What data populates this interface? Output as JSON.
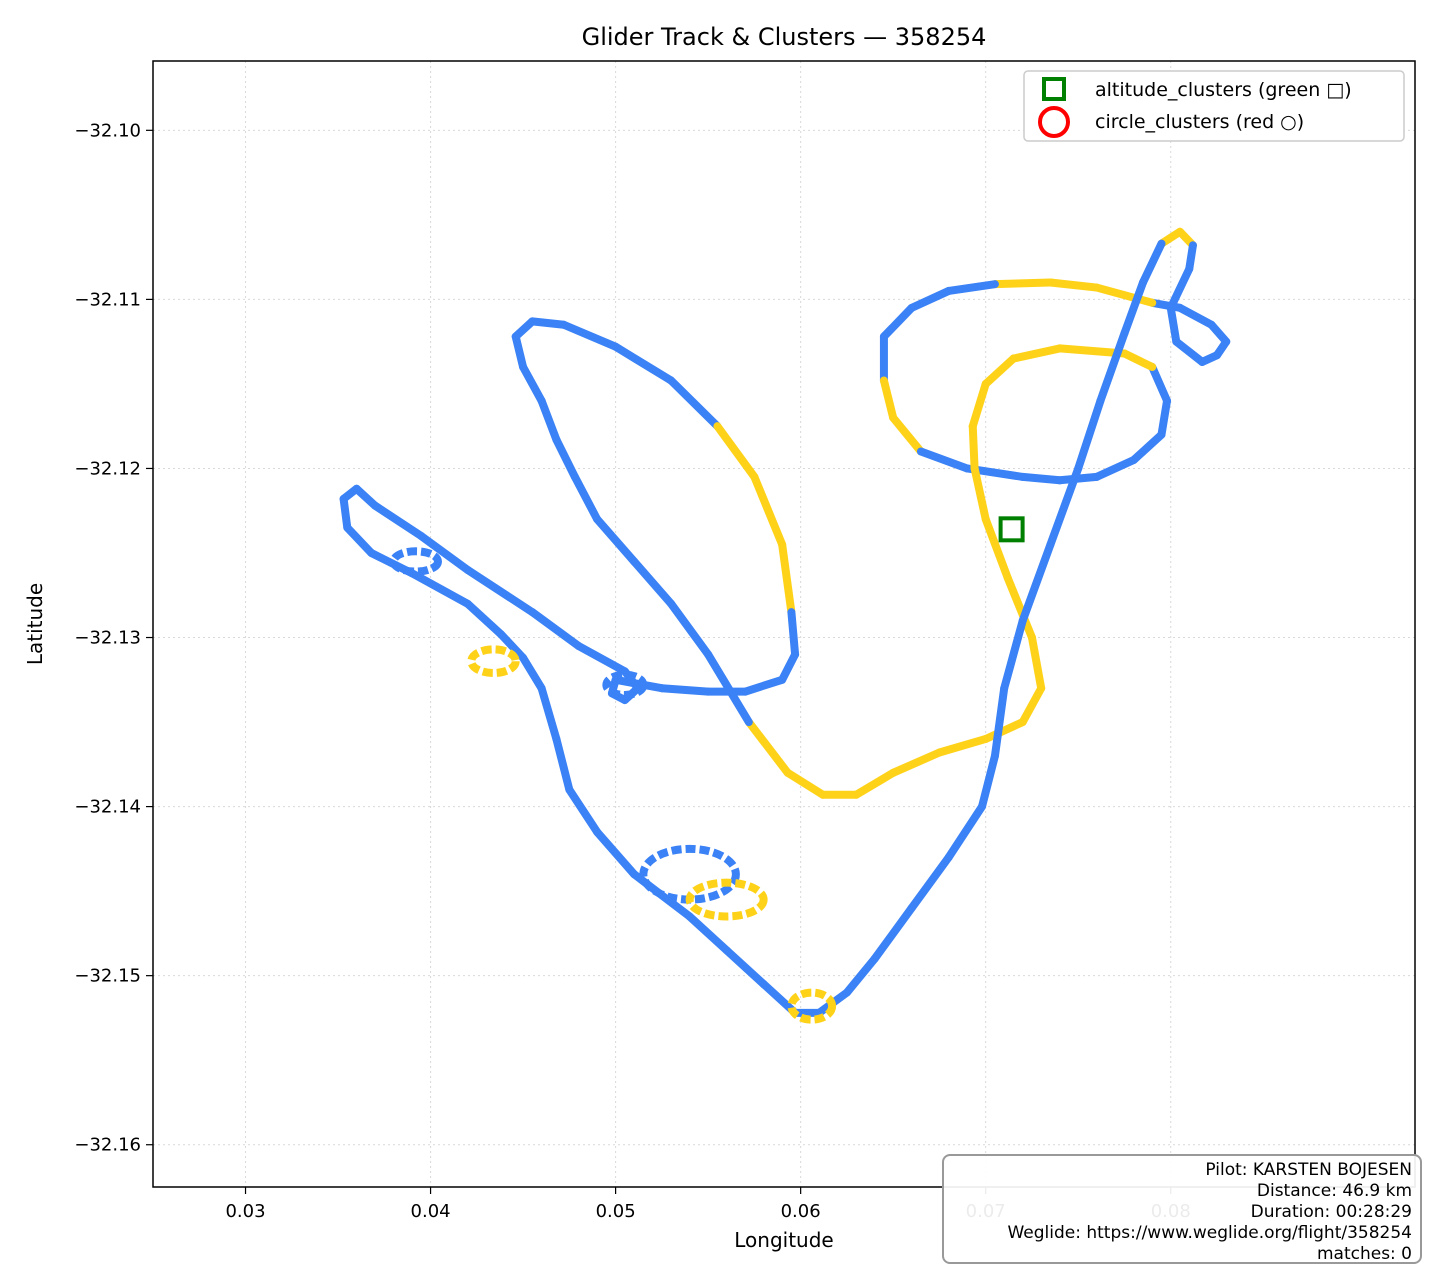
{
  "chart_data": {
    "type": "line",
    "title": "Glider Track & Clusters — 358254",
    "xlabel": "Longitude",
    "ylabel": "Latitude",
    "xlim": [
      0.025,
      0.0932
    ],
    "ylim": [
      -32.1625,
      -32.0959
    ],
    "xticks": [
      "0.03",
      "0.04",
      "0.05",
      "0.06",
      "0.07",
      "0.08"
    ],
    "xtick_values": [
      0.03,
      0.04,
      0.05,
      0.06,
      0.07,
      0.08
    ],
    "yticks": [
      "−32.10",
      "−32.11",
      "−32.12",
      "−32.13",
      "−32.14",
      "−32.15",
      "−32.16"
    ],
    "ytick_values": [
      -32.1,
      -32.11,
      -32.12,
      -32.13,
      -32.14,
      -32.15,
      -32.16
    ],
    "grid": true,
    "legend_placement": "upper right",
    "colors": {
      "climb": "#ffd21a",
      "glide": "#3b82f6",
      "altitude_cluster": "#008000",
      "circle_cluster": "#ff0000"
    },
    "series": [
      {
        "name": "altitude_clusters (green □)",
        "marker": "square",
        "points": [
          [
            0.0714,
            -32.1236
          ]
        ]
      },
      {
        "name": "circle_clusters (red ○)",
        "marker": "circle",
        "points": []
      }
    ],
    "track": [
      [
        0.0795,
        -32.1067
      ],
      [
        0.0805,
        -32.106
      ],
      [
        0.0812,
        -32.1068
      ],
      [
        0.081,
        -32.1082
      ],
      [
        0.08,
        -32.1105
      ],
      [
        0.0803,
        -32.1125
      ],
      [
        0.0817,
        -32.1137
      ],
      [
        0.0825,
        -32.1133
      ],
      [
        0.083,
        -32.1125
      ],
      [
        0.0822,
        -32.1115
      ],
      [
        0.0805,
        -32.1105
      ],
      [
        0.079,
        -32.1102
      ],
      [
        0.076,
        -32.1093
      ],
      [
        0.0735,
        -32.109
      ],
      [
        0.0705,
        -32.1091
      ],
      [
        0.068,
        -32.1095
      ],
      [
        0.066,
        -32.1105
      ],
      [
        0.0645,
        -32.1122
      ],
      [
        0.0645,
        -32.1148
      ],
      [
        0.065,
        -32.117
      ],
      [
        0.0665,
        -32.119
      ],
      [
        0.069,
        -32.12
      ],
      [
        0.072,
        -32.1205
      ],
      [
        0.074,
        -32.1207
      ],
      [
        0.076,
        -32.1205
      ],
      [
        0.078,
        -32.1195
      ],
      [
        0.0795,
        -32.118
      ],
      [
        0.0798,
        -32.116
      ],
      [
        0.079,
        -32.114
      ],
      [
        0.0775,
        -32.1132
      ],
      [
        0.074,
        -32.1129
      ],
      [
        0.0715,
        -32.1135
      ],
      [
        0.07,
        -32.115
      ],
      [
        0.0693,
        -32.1175
      ],
      [
        0.0694,
        -32.12
      ],
      [
        0.07,
        -32.123
      ],
      [
        0.0712,
        -32.1265
      ],
      [
        0.0725,
        -32.13
      ],
      [
        0.073,
        -32.133
      ],
      [
        0.072,
        -32.135
      ],
      [
        0.07,
        -32.136
      ],
      [
        0.0675,
        -32.1368
      ],
      [
        0.065,
        -32.138
      ],
      [
        0.063,
        -32.1393
      ],
      [
        0.0612,
        -32.1393
      ],
      [
        0.0593,
        -32.138
      ],
      [
        0.0572,
        -32.135
      ],
      [
        0.055,
        -32.131
      ],
      [
        0.053,
        -32.128
      ],
      [
        0.051,
        -32.1255
      ],
      [
        0.049,
        -32.123
      ],
      [
        0.0478,
        -32.1205
      ],
      [
        0.0468,
        -32.1183
      ],
      [
        0.046,
        -32.116
      ],
      [
        0.045,
        -32.114
      ],
      [
        0.0446,
        -32.1122
      ],
      [
        0.0455,
        -32.1113
      ],
      [
        0.0472,
        -32.1115
      ],
      [
        0.05,
        -32.1128
      ],
      [
        0.053,
        -32.1148
      ],
      [
        0.0555,
        -32.1175
      ],
      [
        0.0575,
        -32.1205
      ],
      [
        0.059,
        -32.1245
      ],
      [
        0.0595,
        -32.1285
      ],
      [
        0.0597,
        -32.131
      ],
      [
        0.059,
        -32.1325
      ],
      [
        0.057,
        -32.1332
      ],
      [
        0.055,
        -32.1332
      ],
      [
        0.0525,
        -32.133
      ],
      [
        0.051,
        -32.1327
      ],
      [
        0.05,
        -32.1325
      ],
      [
        0.0498,
        -32.1333
      ],
      [
        0.0505,
        -32.1337
      ],
      [
        0.0512,
        -32.133
      ],
      [
        0.0505,
        -32.132
      ],
      [
        0.048,
        -32.1305
      ],
      [
        0.0455,
        -32.1285
      ],
      [
        0.042,
        -32.126
      ],
      [
        0.0395,
        -32.124
      ],
      [
        0.037,
        -32.1222
      ],
      [
        0.036,
        -32.1212
      ],
      [
        0.0353,
        -32.1218
      ],
      [
        0.0355,
        -32.1235
      ],
      [
        0.0368,
        -32.125
      ],
      [
        0.039,
        -32.1262
      ],
      [
        0.042,
        -32.128
      ],
      [
        0.0438,
        -32.1298
      ],
      [
        0.045,
        -32.1312
      ],
      [
        0.046,
        -32.133
      ],
      [
        0.0468,
        -32.136
      ],
      [
        0.0475,
        -32.139
      ],
      [
        0.049,
        -32.1415
      ],
      [
        0.051,
        -32.144
      ],
      [
        0.054,
        -32.1465
      ],
      [
        0.056,
        -32.1485
      ],
      [
        0.058,
        -32.1505
      ],
      [
        0.0597,
        -32.1522
      ],
      [
        0.061,
        -32.1522
      ],
      [
        0.0625,
        -32.151
      ],
      [
        0.064,
        -32.149
      ],
      [
        0.066,
        -32.146
      ],
      [
        0.068,
        -32.143
      ],
      [
        0.0698,
        -32.14
      ],
      [
        0.0705,
        -32.137
      ],
      [
        0.071,
        -32.133
      ],
      [
        0.072,
        -32.129
      ],
      [
        0.0735,
        -32.1245
      ],
      [
        0.075,
        -32.12
      ],
      [
        0.0762,
        -32.116
      ],
      [
        0.0775,
        -32.112
      ],
      [
        0.0785,
        -32.109
      ],
      [
        0.0795,
        -32.1067
      ]
    ],
    "annotations": []
  },
  "info_box": {
    "pilot": "Pilot: KARSTEN BOJESEN",
    "distance": "Distance: 46.9 km",
    "duration": "Duration: 00:28:29",
    "weglide": "Weglide: https://www.weglide.org/flight/358254",
    "matches": "matches: 0"
  }
}
